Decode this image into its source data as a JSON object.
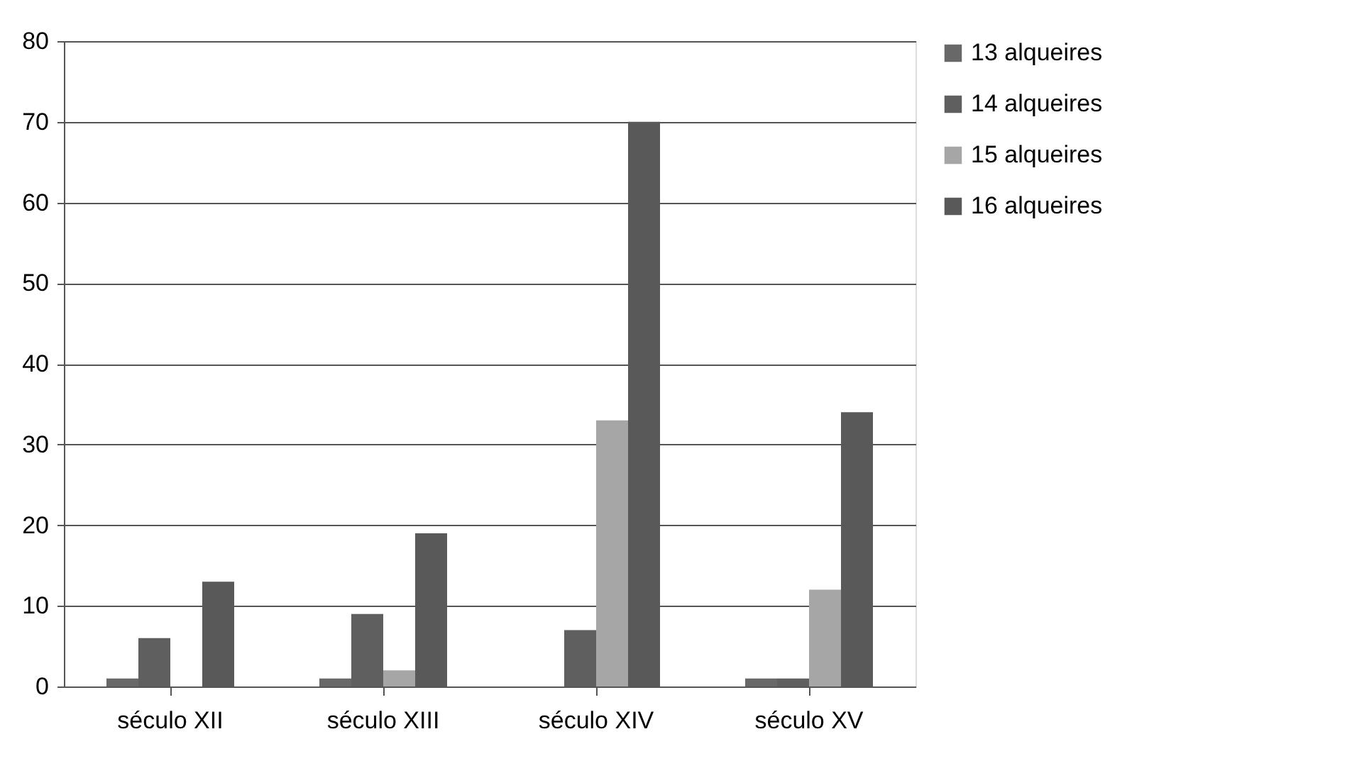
{
  "chart_data": {
    "type": "bar",
    "categories": [
      "século XII",
      "século XIII",
      "século XIV",
      "século XV"
    ],
    "series": [
      {
        "name": "13 alqueires",
        "color": "#686868",
        "values": [
          1,
          1,
          0,
          1
        ]
      },
      {
        "name": "14 alqueires",
        "color": "#5f5f5f",
        "values": [
          6,
          9,
          7,
          1
        ]
      },
      {
        "name": "15 alqueires",
        "color": "#a6a6a6",
        "values": [
          0,
          2,
          33,
          12
        ]
      },
      {
        "name": "16 alqueires",
        "color": "#595959",
        "values": [
          13,
          19,
          70,
          34
        ]
      }
    ],
    "ylim": [
      0,
      80
    ],
    "yticks": [
      0,
      10,
      20,
      30,
      40,
      50,
      60,
      70,
      80
    ],
    "grid": "y",
    "legend": "right"
  }
}
